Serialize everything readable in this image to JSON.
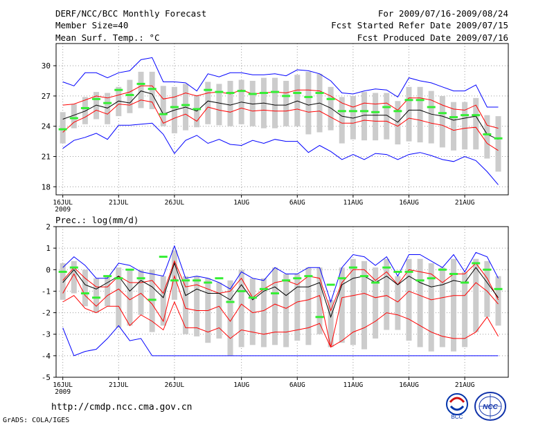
{
  "header": {
    "title": "DERF/NCC/BCC Monthly Forecast",
    "member_size": "Member Size=40",
    "variable": "Mean Surf. Temp.: °C",
    "period": "For 2009/07/16-2009/08/24",
    "started_refer": "Fcst Started Refer Date 2009/07/15",
    "produced": "Fcst Produced Date 2009/07/16"
  },
  "lower_title": "Prec.: log(mm/d)",
  "url": "http://cmdp.ncc.cma.gov.cn",
  "credit": "GrADS: COLA/IGES",
  "logos": {
    "bcc": "BCC",
    "ncc": "NCC"
  },
  "colors": {
    "max_min": "#0000ff",
    "percentile": "#ff0000",
    "mean": "#000000",
    "median": "#33ee33",
    "box": "#cccccc"
  },
  "chart_data": [
    {
      "type": "line",
      "title": "Mean Surf. Temp.: °C",
      "x_start": "2009-07-16",
      "xticks": [
        "16JUL",
        "21JUL",
        "26JUL",
        "1AUG",
        "6AUG",
        "11AUG",
        "16AUG",
        "21AUG"
      ],
      "xtick_index": [
        0,
        5,
        10,
        16,
        21,
        26,
        31,
        36
      ],
      "year_label": "2009",
      "yticks": [
        18,
        21,
        24,
        27,
        30
      ],
      "ylim": [
        17.2,
        32.2
      ],
      "series": [
        {
          "name": "max",
          "values": [
            28.4,
            28.0,
            29.3,
            29.3,
            28.8,
            29.3,
            29.5,
            30.6,
            30.8,
            28.4,
            28.4,
            28.3,
            27.5,
            29.2,
            28.9,
            29.3,
            29.3,
            29.1,
            29.1,
            29.2,
            29.0,
            29.6,
            29.5,
            29.2,
            28.5,
            27.3,
            27.2,
            27.5,
            27.7,
            27.6,
            26.9,
            28.8,
            28.5,
            28.3,
            27.9,
            27.5,
            27.5,
            28.1,
            25.9,
            25.9
          ]
        },
        {
          "name": "p90",
          "values": [
            26.1,
            26.2,
            26.6,
            27.0,
            26.8,
            27.1,
            27.4,
            28.0,
            28.0,
            26.7,
            26.9,
            27.3,
            27.0,
            27.3,
            27.4,
            27.2,
            27.6,
            27.2,
            27.3,
            27.4,
            27.3,
            27.6,
            27.6,
            27.5,
            27.0,
            26.3,
            25.9,
            26.3,
            26.2,
            26.3,
            25.6,
            26.8,
            26.8,
            26.6,
            26.1,
            25.7,
            25.6,
            26.1,
            24.1,
            23.8
          ]
        },
        {
          "name": "mean",
          "values": [
            24.7,
            25.1,
            25.5,
            26.1,
            25.8,
            26.5,
            26.3,
            27.5,
            27.2,
            25.2,
            25.6,
            25.9,
            25.5,
            26.5,
            26.3,
            26.1,
            26.4,
            26.2,
            26.3,
            26.1,
            26.1,
            26.5,
            26.1,
            26.3,
            25.8,
            25.0,
            24.8,
            25.1,
            25.1,
            25.1,
            24.4,
            25.6,
            25.6,
            25.2,
            25.0,
            24.6,
            24.8,
            25.0,
            23.2,
            22.7
          ]
        },
        {
          "name": "p10",
          "values": [
            23.4,
            24.4,
            24.9,
            25.6,
            25.2,
            26.2,
            26.1,
            26.6,
            26.4,
            24.3,
            24.8,
            25.2,
            24.5,
            25.9,
            25.6,
            25.4,
            25.8,
            25.5,
            25.6,
            25.5,
            25.5,
            25.7,
            25.4,
            25.5,
            24.9,
            24.3,
            24.3,
            24.6,
            24.5,
            24.5,
            24.0,
            24.8,
            24.6,
            24.3,
            24.1,
            23.6,
            23.8,
            23.9,
            22.3,
            21.6
          ]
        },
        {
          "name": "min",
          "values": [
            21.8,
            22.6,
            22.9,
            23.3,
            22.7,
            24.1,
            24.1,
            24.2,
            24.3,
            23.2,
            21.3,
            22.6,
            23.1,
            22.3,
            22.7,
            22.2,
            22.1,
            22.6,
            22.3,
            22.7,
            22.5,
            22.5,
            21.4,
            22.1,
            21.5,
            20.7,
            21.2,
            20.7,
            21.3,
            21.2,
            20.7,
            21.2,
            21.4,
            21.1,
            20.7,
            20.5,
            21.0,
            20.6,
            19.5,
            18.2
          ]
        },
        {
          "name": "median",
          "values": [
            23.7,
            24.8,
            25.8,
            26.7,
            26.3,
            27.6,
            27.1,
            28.2,
            27.7,
            25.2,
            25.9,
            26.1,
            25.7,
            27.6,
            27.4,
            27.3,
            27.5,
            27.2,
            27.3,
            27.4,
            27.0,
            27.3,
            26.9,
            27.3,
            26.7,
            25.5,
            25.5,
            25.5,
            25.4,
            25.9,
            25.5,
            26.6,
            26.6,
            25.9,
            25.3,
            24.9,
            25.1,
            25.1,
            23.2,
            22.8
          ]
        },
        {
          "name": "box_high",
          "values": [
            25.4,
            26.2,
            26.9,
            27.4,
            27.3,
            27.9,
            28.6,
            29.4,
            29.4,
            28.0,
            27.9,
            28.2,
            27.1,
            28.4,
            28.2,
            28.5,
            28.6,
            28.5,
            28.8,
            28.8,
            28.5,
            29.1,
            29.4,
            29.2,
            27.9,
            26.9,
            27.0,
            27.4,
            27.3,
            27.3,
            26.5,
            27.9,
            27.9,
            27.5,
            27.0,
            26.4,
            26.4,
            26.8,
            25.1,
            25.0
          ]
        },
        {
          "name": "box_low",
          "values": [
            22.3,
            23.8,
            24.2,
            24.7,
            24.2,
            25.0,
            25.3,
            25.8,
            25.7,
            24.0,
            23.3,
            23.6,
            23.9,
            24.2,
            24.1,
            24.0,
            24.2,
            24.0,
            23.8,
            23.8,
            24.0,
            24.0,
            23.2,
            23.4,
            23.6,
            22.3,
            22.7,
            22.6,
            22.6,
            22.7,
            22.2,
            22.5,
            22.4,
            22.3,
            21.9,
            21.6,
            21.7,
            21.7,
            20.8,
            19.5
          ]
        }
      ]
    },
    {
      "type": "line",
      "title": "Prec.: log(mm/d)",
      "x_start": "2009-07-16",
      "xticks": [
        "16JUL",
        "21JUL",
        "26JUL",
        "1AUG",
        "6AUG",
        "11AUG",
        "16AUG",
        "21AUG"
      ],
      "xtick_index": [
        0,
        5,
        10,
        16,
        21,
        26,
        31,
        36
      ],
      "year_label": "2009",
      "yticks": [
        -5,
        -4,
        -3,
        -2,
        -1,
        0,
        1,
        2
      ],
      "ylim": [
        -5,
        2
      ],
      "series": [
        {
          "name": "max",
          "values": [
            0.1,
            0.6,
            0.2,
            -0.4,
            -0.4,
            0.3,
            0.2,
            -0.1,
            -0.2,
            -0.3,
            1.1,
            -0.4,
            -0.3,
            -0.4,
            -0.6,
            -0.9,
            -0.1,
            -0.4,
            -0.5,
            0.1,
            -0.2,
            -0.2,
            0.1,
            0.1,
            -1.5,
            0.1,
            0.7,
            0.6,
            0.2,
            0.6,
            -0.3,
            0.7,
            0.7,
            0.4,
            0.1,
            0.7,
            -0.1,
            0.8,
            0.6,
            -0.4
          ]
        },
        {
          "name": "p90",
          "values": [
            -0.5,
            0.1,
            -0.4,
            -0.8,
            -0.8,
            -0.3,
            -0.6,
            -0.6,
            -0.5,
            -1.1,
            0.4,
            -0.8,
            -0.7,
            -0.9,
            -1.1,
            -1.0,
            -0.4,
            -1.3,
            -0.9,
            -0.6,
            -0.5,
            -0.7,
            -0.3,
            -0.4,
            -1.9,
            -0.6,
            0.0,
            0.0,
            -0.5,
            -0.1,
            -0.7,
            0.0,
            -0.1,
            -0.2,
            -0.6,
            -0.2,
            -0.2,
            0.3,
            -0.4,
            -1.4
          ]
        },
        {
          "name": "mean",
          "values": [
            -0.6,
            0.0,
            -0.7,
            -0.9,
            -0.6,
            -0.3,
            -1.0,
            -0.5,
            -0.8,
            -1.3,
            0.3,
            -1.2,
            -0.9,
            -1.1,
            -1.1,
            -1.4,
            -0.7,
            -1.4,
            -1.0,
            -0.8,
            -1.2,
            -0.8,
            -0.8,
            -0.6,
            -2.2,
            -0.7,
            -0.4,
            -0.3,
            -0.6,
            -0.3,
            -0.7,
            -0.3,
            -0.6,
            -0.8,
            -0.7,
            -0.5,
            -0.6,
            0.1,
            -0.6,
            -1.3
          ]
        },
        {
          "name": "p10",
          "values": [
            -1.1,
            -0.2,
            -1.2,
            -1.7,
            -1.2,
            -0.9,
            -1.4,
            -1.1,
            -1.6,
            -2.4,
            -0.3,
            -1.8,
            -1.9,
            -1.9,
            -1.7,
            -2.4,
            -1.6,
            -2.0,
            -1.9,
            -1.6,
            -1.8,
            -1.5,
            -1.4,
            -1.2,
            -3.6,
            -1.3,
            -1.2,
            -1.1,
            -1.3,
            -1.2,
            -1.5,
            -1.0,
            -1.2,
            -1.4,
            -1.3,
            -1.2,
            -1.2,
            -0.6,
            -1.0,
            -1.6
          ]
        },
        {
          "name": "p_low",
          "values": [
            -1.5,
            -1.2,
            -1.8,
            -2.0,
            -1.7,
            -1.7,
            -2.6,
            -2.1,
            -2.4,
            -2.8,
            -1.5,
            -2.7,
            -2.7,
            -2.9,
            -2.7,
            -3.2,
            -2.8,
            -2.9,
            -3.0,
            -2.9,
            -2.9,
            -2.8,
            -2.7,
            -2.5,
            -3.6,
            -3.3,
            -2.9,
            -2.7,
            -2.4,
            -2.0,
            -2.1,
            -2.3,
            -2.6,
            -2.9,
            -3.1,
            -3.2,
            -3.2,
            -2.9,
            -2.2,
            -3.1
          ]
        },
        {
          "name": "min",
          "values": [
            -2.7,
            -4.0,
            -3.8,
            -3.7,
            -3.2,
            -2.6,
            -3.3,
            -3.2,
            -4.0,
            -4.0,
            -4.0,
            -4.0,
            -4.0,
            -4.0,
            -4.0,
            -4.0,
            -4.0,
            -4.0,
            -4.0,
            -4.0,
            -4.0,
            -4.0,
            -4.0,
            -4.0,
            -4.0,
            -4.0,
            -4.0,
            -4.0,
            -4.0,
            -4.0,
            -4.0,
            -4.0,
            -4.0,
            -4.0,
            -4.0,
            -4.0,
            -4.0,
            -4.0,
            -4.0,
            -4.0
          ]
        },
        {
          "name": "median",
          "values": [
            -0.1,
            0.1,
            -1.1,
            -1.3,
            -0.3,
            -0.4,
            0.0,
            -0.4,
            -1.4,
            0.6,
            -0.5,
            -0.5,
            -0.5,
            -0.6,
            -0.4,
            -1.5,
            -1.0,
            -1.3,
            -0.9,
            -1.1,
            -0.5,
            -0.4,
            -0.3,
            -2.2,
            -0.7,
            -0.4,
            0.1,
            -0.3,
            -0.6,
            0.1,
            -0.1,
            -0.1,
            -0.5,
            -0.4,
            0.0,
            -0.2,
            -0.6,
            0.3,
            0.0,
            -0.9
          ]
        },
        {
          "name": "box_high",
          "values": [
            0.3,
            0.4,
            0.0,
            -0.4,
            -0.3,
            0.1,
            0.0,
            0.0,
            0.0,
            -0.3,
            0.9,
            -0.3,
            -0.3,
            -0.4,
            -0.6,
            -0.5,
            0.0,
            -0.4,
            -0.4,
            0.1,
            -0.2,
            -0.2,
            0.1,
            0.1,
            -1.4,
            0.1,
            0.5,
            0.4,
            0.1,
            0.5,
            -0.3,
            0.5,
            0.5,
            0.3,
            0.1,
            0.5,
            -0.1,
            0.5,
            0.4,
            -0.3
          ]
        },
        {
          "name": "box_low",
          "values": [
            -1.4,
            -1.1,
            -1.7,
            -2.0,
            -1.7,
            -2.7,
            -2.6,
            -2.1,
            -2.9,
            -2.6,
            -1.4,
            -3.0,
            -3.1,
            -3.4,
            -3.2,
            -4.0,
            -3.6,
            -3.5,
            -3.6,
            -3.5,
            -3.6,
            -3.3,
            -3.5,
            -3.0,
            -3.6,
            -3.4,
            -3.5,
            -3.7,
            -3.2,
            -2.8,
            -2.8,
            -3.3,
            -3.6,
            -3.8,
            -3.6,
            -3.8,
            -3.6,
            -2.9,
            -2.2,
            -2.6
          ]
        }
      ]
    }
  ]
}
